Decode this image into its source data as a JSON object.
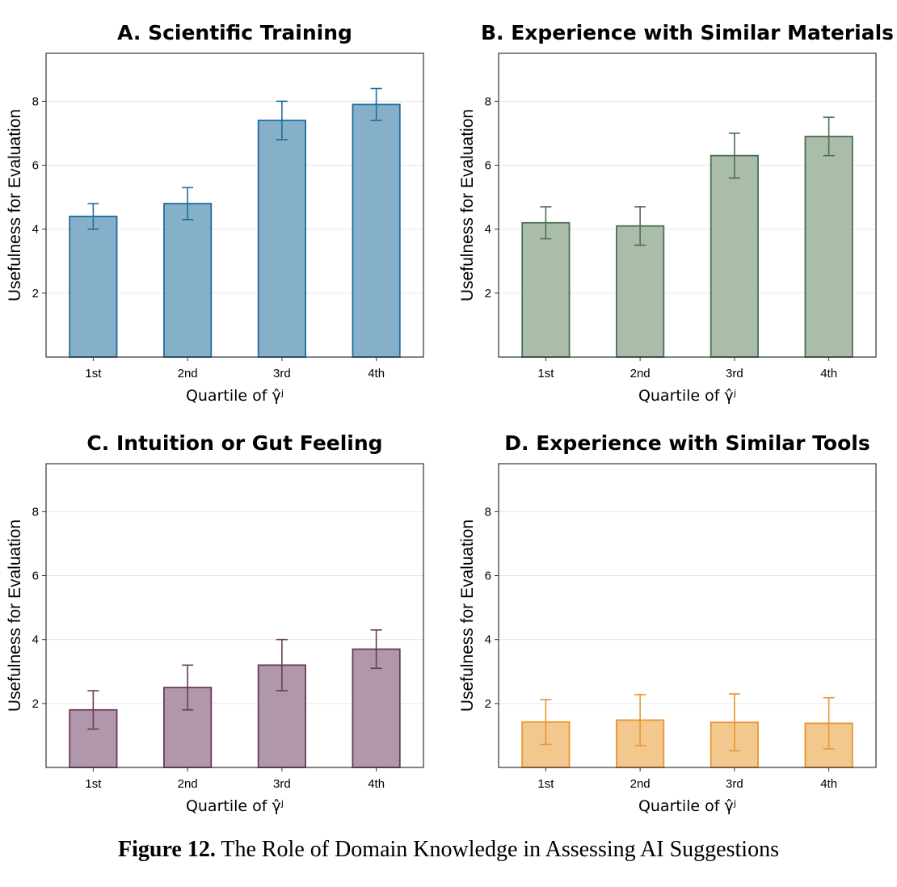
{
  "chart_data": [
    {
      "type": "bar",
      "title": "A. Scientific Training",
      "categories": [
        "1st",
        "2nd",
        "3rd",
        "4th"
      ],
      "values": [
        4.4,
        4.8,
        7.4,
        7.9
      ],
      "error_lower": [
        4.0,
        4.3,
        6.8,
        7.4
      ],
      "error_upper": [
        4.8,
        5.3,
        8.0,
        8.4
      ],
      "xlabel": "Quartile of γ̂ʲ",
      "ylabel": "Usefulness for Evaluation",
      "ylim": [
        0,
        9.5
      ],
      "yticks": [
        2,
        4,
        6,
        8
      ],
      "grid": true,
      "color": "#1f6e9c",
      "fill": "#86afc9"
    },
    {
      "type": "bar",
      "title": "B. Experience with Similar Materials",
      "categories": [
        "1st",
        "2nd",
        "3rd",
        "4th"
      ],
      "values": [
        4.2,
        4.1,
        6.3,
        6.9
      ],
      "error_lower": [
        3.7,
        3.5,
        5.6,
        6.3
      ],
      "error_upper": [
        4.7,
        4.7,
        7.0,
        7.5
      ],
      "xlabel": "Quartile of γ̂ʲ",
      "ylabel": "Usefulness for Evaluation",
      "ylim": [
        0,
        9.5
      ],
      "yticks": [
        2,
        4,
        6,
        8
      ],
      "grid": true,
      "color": "#4d6e52",
      "fill": "#aabcaa"
    },
    {
      "type": "bar",
      "title": "C. Intuition or Gut Feeling",
      "categories": [
        "1st",
        "2nd",
        "3rd",
        "4th"
      ],
      "values": [
        1.8,
        2.5,
        3.2,
        3.7
      ],
      "error_lower": [
        1.2,
        1.8,
        2.4,
        3.1
      ],
      "error_upper": [
        2.4,
        3.2,
        4.0,
        4.3
      ],
      "xlabel": "Quartile of γ̂ʲ",
      "ylabel": "Usefulness for Evaluation",
      "ylim": [
        0,
        9.5
      ],
      "yticks": [
        2,
        4,
        6,
        8
      ],
      "grid": true,
      "color": "#6a3a5c",
      "fill": "#b097aa"
    },
    {
      "type": "bar",
      "title": "D. Experience with Similar Tools",
      "categories": [
        "1st",
        "2nd",
        "3rd",
        "4th"
      ],
      "values": [
        1.42,
        1.48,
        1.41,
        1.38
      ],
      "error_lower": [
        0.72,
        0.68,
        0.52,
        0.58
      ],
      "error_upper": [
        2.12,
        2.28,
        2.3,
        2.18
      ],
      "xlabel": "Quartile of γ̂ʲ",
      "ylabel": "Usefulness for Evaluation",
      "ylim": [
        0,
        9.5
      ],
      "yticks": [
        2,
        4,
        6,
        8
      ],
      "grid": true,
      "color": "#e8962e",
      "fill": "#f3c88f"
    }
  ],
  "caption": {
    "label": "Figure 12.",
    "text": "The Role of Domain Knowledge in Assessing AI Suggestions"
  }
}
